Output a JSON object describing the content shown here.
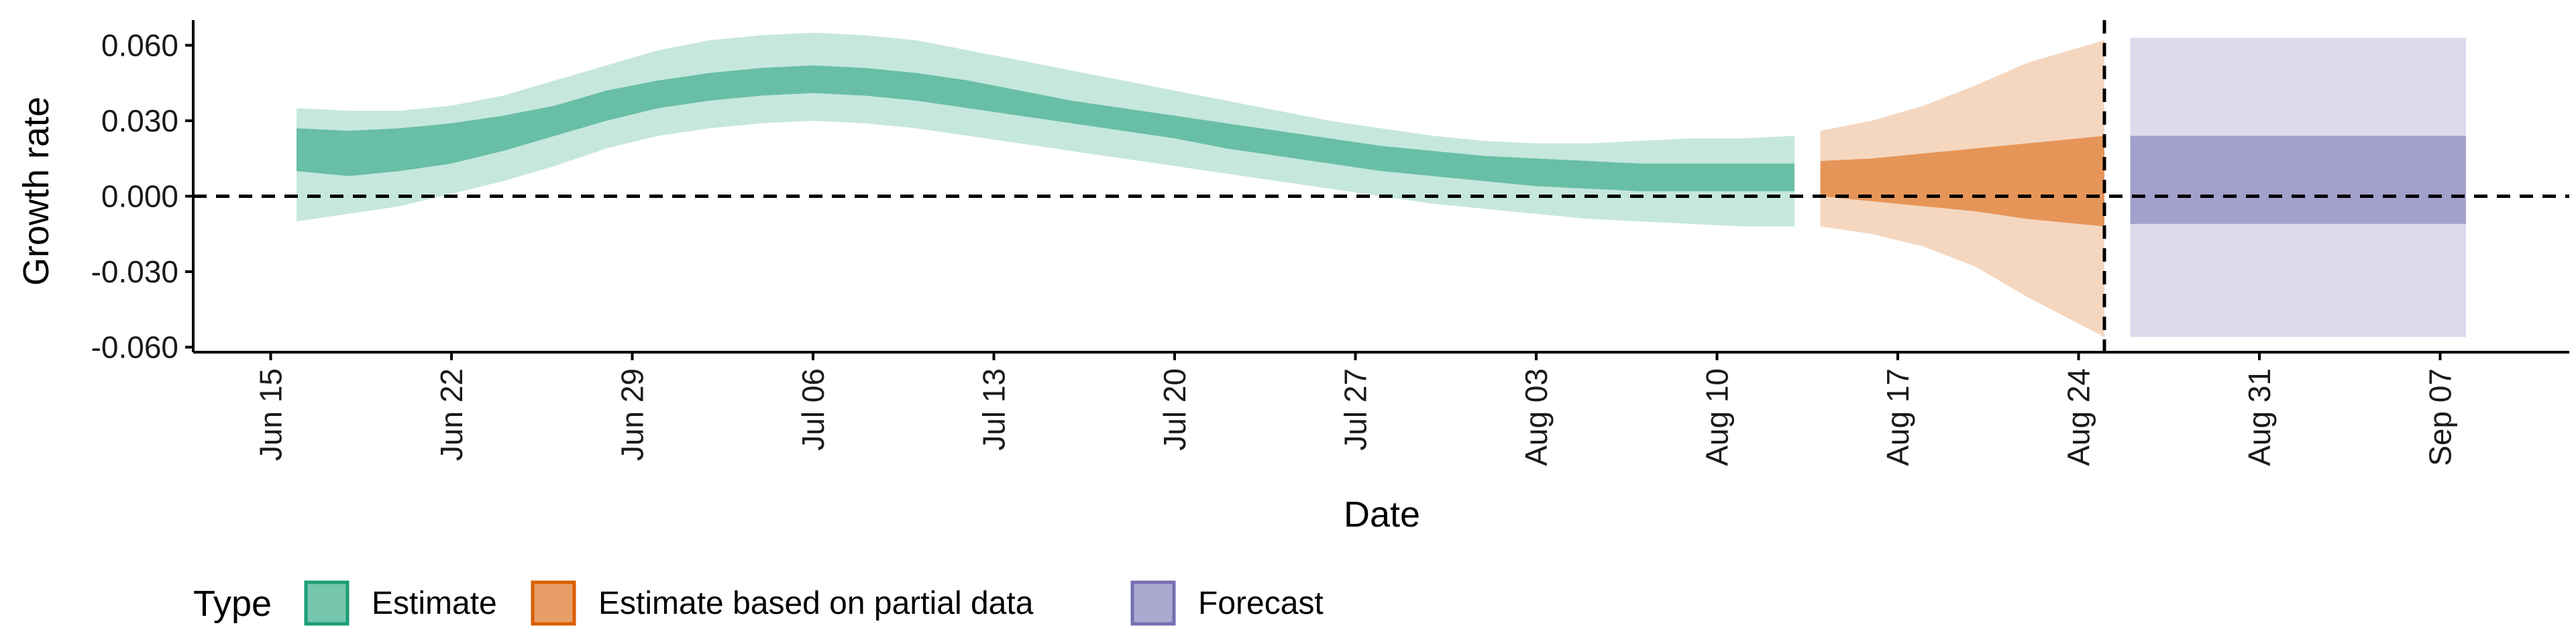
{
  "chart_data": {
    "type": "area",
    "xlabel": "Date",
    "ylabel": "Growth rate",
    "x_axis_type": "date",
    "x_range": [
      "2020-06-12",
      "2020-09-12"
    ],
    "ylim": [
      -0.062,
      0.07
    ],
    "y_ticks": [
      -0.06,
      -0.03,
      0.0,
      0.03,
      0.06
    ],
    "y_tick_labels": [
      "-0.060",
      "-0.030",
      "0.000",
      "0.030",
      "0.060"
    ],
    "x_ticks": [
      "2020-06-15",
      "2020-06-22",
      "2020-06-29",
      "2020-07-06",
      "2020-07-13",
      "2020-07-20",
      "2020-07-27",
      "2020-08-03",
      "2020-08-10",
      "2020-08-17",
      "2020-08-24",
      "2020-08-31",
      "2020-09-07"
    ],
    "x_tick_labels": [
      "Jun 15",
      "Jun 22",
      "Jun 29",
      "Jul 06",
      "Jul 13",
      "Jul 20",
      "Jul 27",
      "Aug 03",
      "Aug 10",
      "Aug 17",
      "Aug 24",
      "Aug 31",
      "Sep 07"
    ],
    "hline_y": 0,
    "vline_date": "2020-08-25",
    "grid": false,
    "legend": {
      "title": "Type",
      "position": "bottom-left",
      "entries": [
        "Estimate",
        "Estimate based on partial data",
        "Forecast"
      ]
    },
    "colors": {
      "Estimate": "#1b9e77",
      "Estimate based on partial data": "#d95f02",
      "Forecast": "#7570b3"
    },
    "series": [
      {
        "name": "Estimate",
        "x": [
          "2020-06-16",
          "2020-06-18",
          "2020-06-20",
          "2020-06-22",
          "2020-06-24",
          "2020-06-26",
          "2020-06-28",
          "2020-06-30",
          "2020-07-02",
          "2020-07-04",
          "2020-07-06",
          "2020-07-08",
          "2020-07-10",
          "2020-07-12",
          "2020-07-14",
          "2020-07-16",
          "2020-07-18",
          "2020-07-20",
          "2020-07-22",
          "2020-07-24",
          "2020-07-26",
          "2020-07-28",
          "2020-07-30",
          "2020-08-01",
          "2020-08-03",
          "2020-08-05",
          "2020-08-07",
          "2020-08-09",
          "2020-08-11",
          "2020-08-13"
        ],
        "lower_90": [
          -0.01,
          -0.007,
          -0.004,
          0.001,
          0.006,
          0.012,
          0.019,
          0.024,
          0.027,
          0.029,
          0.03,
          0.029,
          0.027,
          0.024,
          0.021,
          0.018,
          0.015,
          0.012,
          0.009,
          0.006,
          0.003,
          0.0,
          -0.003,
          -0.005,
          -0.007,
          -0.009,
          -0.01,
          -0.011,
          -0.012,
          -0.012
        ],
        "lower_50": [
          0.01,
          0.008,
          0.01,
          0.013,
          0.018,
          0.024,
          0.03,
          0.035,
          0.038,
          0.04,
          0.041,
          0.04,
          0.038,
          0.035,
          0.032,
          0.029,
          0.026,
          0.023,
          0.019,
          0.016,
          0.013,
          0.01,
          0.008,
          0.006,
          0.004,
          0.003,
          0.002,
          0.002,
          0.002,
          0.002
        ],
        "upper_50": [
          0.027,
          0.026,
          0.027,
          0.029,
          0.032,
          0.036,
          0.042,
          0.046,
          0.049,
          0.051,
          0.052,
          0.051,
          0.049,
          0.046,
          0.042,
          0.038,
          0.035,
          0.032,
          0.029,
          0.026,
          0.023,
          0.02,
          0.018,
          0.016,
          0.015,
          0.014,
          0.013,
          0.013,
          0.013,
          0.013
        ],
        "upper_90": [
          0.035,
          0.034,
          0.034,
          0.036,
          0.04,
          0.046,
          0.052,
          0.058,
          0.062,
          0.064,
          0.065,
          0.064,
          0.062,
          0.058,
          0.054,
          0.05,
          0.046,
          0.042,
          0.038,
          0.034,
          0.03,
          0.027,
          0.024,
          0.022,
          0.021,
          0.021,
          0.022,
          0.023,
          0.023,
          0.024
        ]
      },
      {
        "name": "Estimate based on partial data",
        "x": [
          "2020-08-14",
          "2020-08-16",
          "2020-08-18",
          "2020-08-20",
          "2020-08-22",
          "2020-08-25"
        ],
        "lower_90": [
          -0.012,
          -0.015,
          -0.02,
          -0.028,
          -0.04,
          -0.056
        ],
        "lower_50": [
          0.0,
          -0.002,
          -0.004,
          -0.006,
          -0.009,
          -0.012
        ],
        "upper_50": [
          0.014,
          0.015,
          0.017,
          0.019,
          0.021,
          0.024
        ],
        "upper_90": [
          0.026,
          0.03,
          0.036,
          0.044,
          0.053,
          0.062
        ]
      },
      {
        "name": "Forecast",
        "x": [
          "2020-08-26",
          "2020-09-08"
        ],
        "lower_90": [
          -0.056,
          -0.056
        ],
        "lower_50": [
          -0.011,
          -0.011
        ],
        "upper_50": [
          0.024,
          0.024
        ],
        "upper_90": [
          0.063,
          0.063
        ]
      }
    ]
  }
}
